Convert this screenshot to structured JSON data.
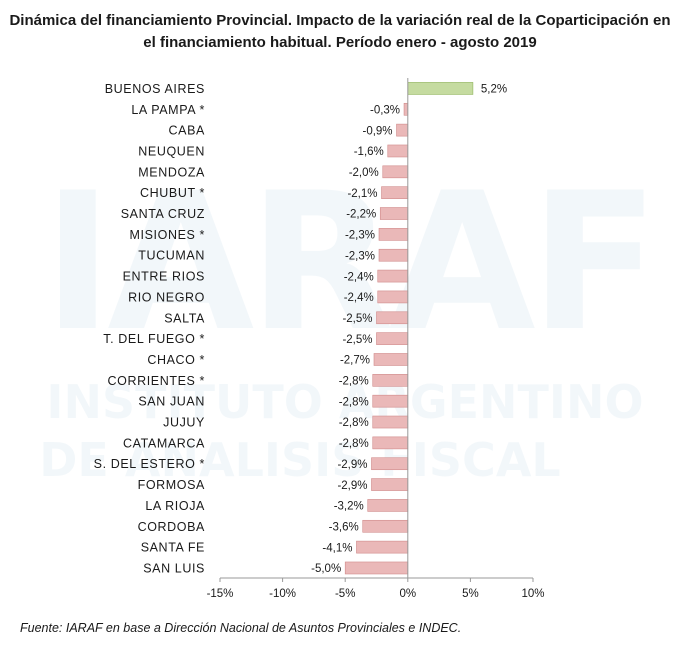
{
  "title_line1": "Dinámica del financiamiento Provincial. Impacto de la variación real de la Coparticipación en",
  "title_line2": "el financiamiento habitual. Período enero - agosto 2019",
  "source": "Fuente: IARAF en base a Dirección Nacional de Asuntos Provinciales e INDEC.",
  "watermark": {
    "line1": "IARAF",
    "line2": "INSTITUTO ARGENTINO",
    "line3": "DE ANALISIS FISCAL"
  },
  "chart_data": {
    "type": "bar",
    "orientation": "horizontal",
    "categories": [
      "BUENOS AIRES",
      "LA PAMPA *",
      "CABA",
      "NEUQUEN",
      "MENDOZA",
      "CHUBUT *",
      "SANTA CRUZ",
      "MISIONES *",
      "TUCUMAN",
      "ENTRE RIOS",
      "RIO NEGRO",
      "SALTA",
      "T. DEL FUEGO *",
      "CHACO *",
      "CORRIENTES *",
      "SAN JUAN",
      "JUJUY",
      "CATAMARCA",
      "S. DEL ESTERO *",
      "FORMOSA",
      "LA RIOJA",
      "CORDOBA",
      "SANTA FE",
      "SAN LUIS"
    ],
    "values": [
      5.2,
      -0.3,
      -0.9,
      -1.6,
      -2.0,
      -2.1,
      -2.2,
      -2.3,
      -2.3,
      -2.4,
      -2.4,
      -2.5,
      -2.5,
      -2.7,
      -2.8,
      -2.8,
      -2.8,
      -2.8,
      -2.9,
      -2.9,
      -3.2,
      -3.6,
      -4.1,
      -5.0
    ],
    "value_labels": [
      "5,2%",
      "-0,3%",
      "-0,9%",
      "-1,6%",
      "-2,0%",
      "-2,1%",
      "-2,2%",
      "-2,3%",
      "-2,3%",
      "-2,4%",
      "-2,4%",
      "-2,5%",
      "-2,5%",
      "-2,7%",
      "-2,8%",
      "-2,8%",
      "-2,8%",
      "-2,8%",
      "-2,9%",
      "-2,9%",
      "-3,2%",
      "-3,6%",
      "-4,1%",
      "-5,0%"
    ],
    "xlim": [
      -15,
      10
    ],
    "xticks": [
      -15,
      -10,
      -5,
      0,
      5,
      10
    ],
    "xtick_labels": [
      "-15%",
      "-10%",
      "-5%",
      "0%",
      "5%",
      "10%"
    ],
    "grid": false,
    "colors": {
      "positive": "#c5dba0",
      "positive_border": "#8fb35a",
      "negative": "#eab8b8",
      "negative_border": "#d08a8a",
      "axis": "#999999"
    }
  }
}
